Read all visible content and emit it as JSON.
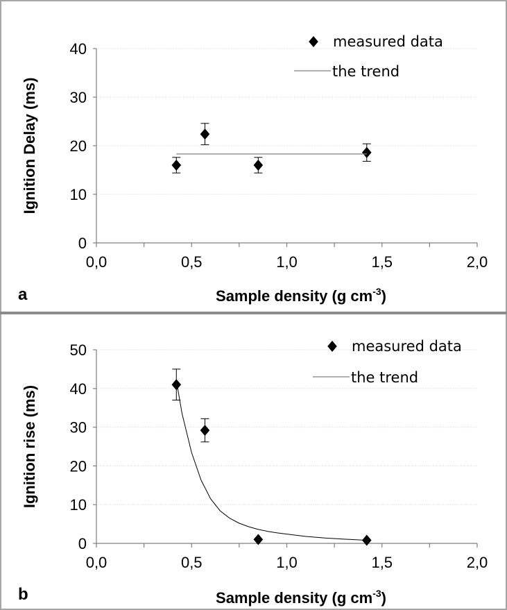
{
  "chart_data": [
    {
      "type": "scatter",
      "panel_label": "a",
      "xlabel": "Sample density (g cm",
      "xlabel_sup": "-3",
      "xlabel_close": ")",
      "ylabel": "Ignition Delay (ms)",
      "xlim": [
        0,
        2
      ],
      "ylim": [
        0,
        40
      ],
      "x_ticks": [
        "0,0",
        "0,5",
        "1,0",
        "1,5",
        "2,0"
      ],
      "y_ticks": [
        "0",
        "10",
        "20",
        "30",
        "40"
      ],
      "grid": "horizontal",
      "legend_position": "top-right",
      "series": [
        {
          "name": "measured data",
          "marker": "diamond",
          "x": [
            0.42,
            0.57,
            0.85,
            1.42
          ],
          "y": [
            16,
            22.4,
            16,
            18.6
          ],
          "err": [
            1.6,
            2.2,
            1.6,
            1.8
          ]
        },
        {
          "name": "the trend",
          "type": "line",
          "x": [
            0.42,
            1.42
          ],
          "y": [
            18.3,
            18.3
          ]
        }
      ]
    },
    {
      "type": "scatter",
      "panel_label": "b",
      "xlabel": "Sample density (g cm",
      "xlabel_sup": "-3",
      "xlabel_close": ")",
      "ylabel": "Ignition rise (ms)",
      "xlim": [
        0,
        2
      ],
      "ylim": [
        0,
        50
      ],
      "x_ticks": [
        "0,0",
        "0,5",
        "1,0",
        "1,5",
        "2,0"
      ],
      "y_ticks": [
        "0",
        "10",
        "20",
        "30",
        "40",
        "50"
      ],
      "grid": "horizontal",
      "legend_position": "top-right",
      "series": [
        {
          "name": "measured data",
          "marker": "diamond",
          "x": [
            0.42,
            0.57,
            0.85,
            1.42
          ],
          "y": [
            41,
            29.2,
            1,
            0.8
          ],
          "err": [
            4,
            3,
            0,
            0
          ]
        },
        {
          "name": "the trend",
          "type": "line",
          "x": [
            0.42,
            0.45,
            0.5,
            0.55,
            0.6,
            0.65,
            0.7,
            0.75,
            0.8,
            0.85,
            0.9,
            0.95,
            1.0,
            1.1,
            1.2,
            1.3,
            1.42
          ],
          "y": [
            42,
            33.5,
            23.4,
            16.3,
            11.5,
            8.4,
            6.5,
            5.2,
            4.3,
            3.6,
            3.1,
            2.7,
            2.4,
            1.8,
            1.4,
            1.1,
            0.8
          ]
        }
      ]
    }
  ]
}
